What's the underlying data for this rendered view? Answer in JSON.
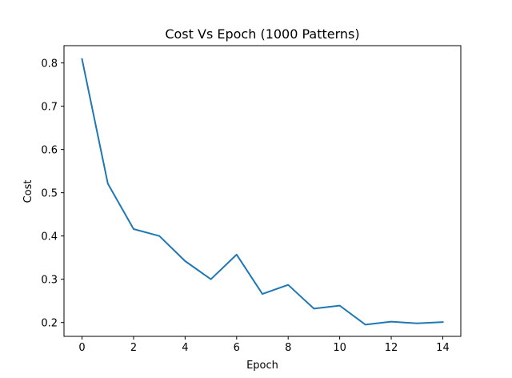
{
  "chart_data": {
    "type": "line",
    "title": "Cost Vs Epoch (1000 Patterns)",
    "xlabel": "Epoch",
    "ylabel": "Cost",
    "xlim": [
      -0.7,
      14.7
    ],
    "ylim": [
      0.168,
      0.84
    ],
    "xticks": [
      0,
      2,
      4,
      6,
      8,
      10,
      12,
      14
    ],
    "yticks": [
      0.2,
      0.3,
      0.4,
      0.5,
      0.6,
      0.7,
      0.8
    ],
    "ytick_labels": [
      "0.2",
      "0.3",
      "0.4",
      "0.5",
      "0.6",
      "0.7",
      "0.8"
    ],
    "grid": false,
    "series": [
      {
        "color": "#1f77b4",
        "x": [
          0,
          1,
          2,
          3,
          4,
          5,
          6,
          7,
          8,
          9,
          10,
          11,
          12,
          13,
          14
        ],
        "y": [
          0.809,
          0.521,
          0.416,
          0.4,
          0.342,
          0.3,
          0.357,
          0.266,
          0.287,
          0.232,
          0.239,
          0.195,
          0.202,
          0.198,
          0.201
        ]
      }
    ]
  }
}
